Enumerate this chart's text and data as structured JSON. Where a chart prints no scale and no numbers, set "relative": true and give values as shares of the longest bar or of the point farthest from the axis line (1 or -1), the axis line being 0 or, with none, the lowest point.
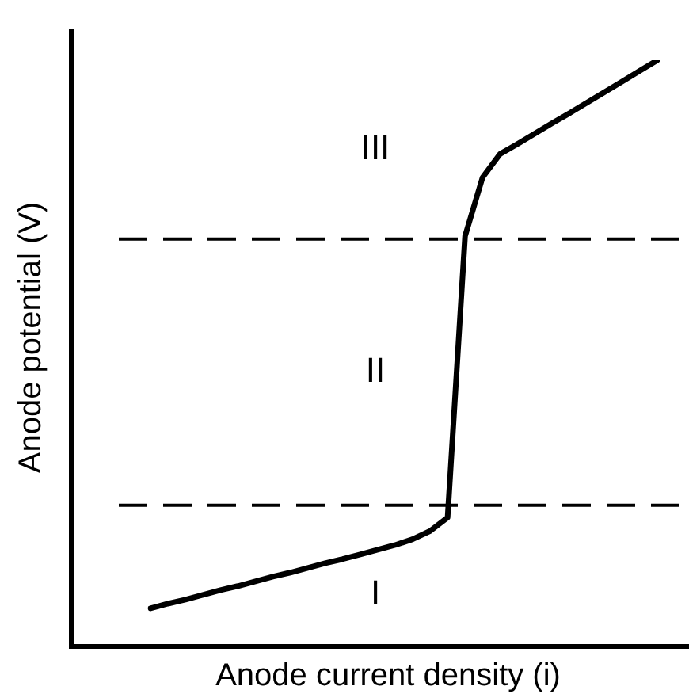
{
  "chart_data": {
    "type": "line",
    "relative": true,
    "xlabel": "Anode current density (i)",
    "ylabel": "Anode potential (V)",
    "categories": [
      null,
      null,
      null,
      null,
      null,
      null,
      null,
      null,
      null,
      null,
      null,
      null,
      null,
      null,
      null,
      null,
      null,
      null,
      null,
      null,
      null,
      null,
      null,
      null,
      null,
      null,
      null,
      null,
      null,
      null
    ],
    "series": [
      {
        "color": "#000000",
        "values": [
          0.065,
          0.073,
          0.08,
          0.088,
          0.096,
          0.103,
          0.111,
          0.119,
          0.126,
          0.134,
          0.142,
          0.149,
          0.157,
          0.165,
          0.173,
          0.183,
          0.197,
          0.22,
          0.7,
          0.8,
          0.84,
          0.857,
          0.875,
          0.893,
          0.91,
          0.928,
          0.946,
          0.964,
          0.982,
          1.0
        ]
      }
    ],
    "ref_lines": [
      {
        "axis": "y",
        "value": 0.695,
        "color": "#000000",
        "line_style": "dashed"
      },
      {
        "axis": "y",
        "value": 0.241,
        "color": "#000000",
        "line_style": "dashed"
      }
    ],
    "annotations": [
      "III",
      "II",
      "I"
    ],
    "legend": false,
    "marker": "none",
    "line_style": "solid"
  }
}
